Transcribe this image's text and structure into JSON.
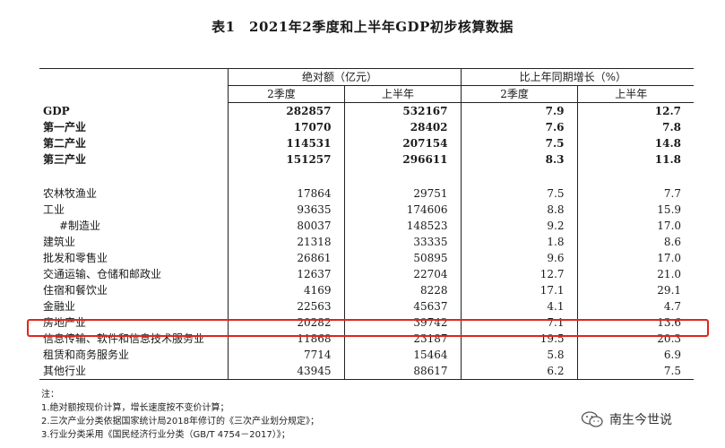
{
  "title": "表1　2021年2季度和上半年GDP初步核算数据",
  "header": {
    "group_abs": "绝对额（亿元）",
    "group_growth": "比上年同期增长（%）",
    "col_q2": "2季度",
    "col_h1": "上半年",
    "col_q2_growth": "2季度",
    "col_h1_growth": "上半年"
  },
  "rows": [
    {
      "label": "GDP",
      "q2": "282857",
      "h1": "532167",
      "gq2": "7.9",
      "gh1": "12.7"
    },
    {
      "label": "第一产业",
      "q2": "17070",
      "h1": "28402",
      "gq2": "7.6",
      "gh1": "7.8"
    },
    {
      "label": "第二产业",
      "q2": "114531",
      "h1": "207154",
      "gq2": "7.5",
      "gh1": "14.8"
    },
    {
      "label": "第三产业",
      "q2": "151257",
      "h1": "296611",
      "gq2": "8.3",
      "gh1": "11.8"
    },
    {
      "label": "农林牧渔业",
      "q2": "17864",
      "h1": "29751",
      "gq2": "7.5",
      "gh1": "7.7"
    },
    {
      "label": "工业",
      "q2": "93635",
      "h1": "174606",
      "gq2": "8.8",
      "gh1": "15.9"
    },
    {
      "label": "#制造业",
      "q2": "80037",
      "h1": "148523",
      "gq2": "9.2",
      "gh1": "17.0"
    },
    {
      "label": "建筑业",
      "q2": "21318",
      "h1": "33335",
      "gq2": "1.8",
      "gh1": "8.6"
    },
    {
      "label": "批发和零售业",
      "q2": "26861",
      "h1": "50895",
      "gq2": "9.6",
      "gh1": "17.0"
    },
    {
      "label": "交通运输、仓储和邮政业",
      "q2": "12637",
      "h1": "22704",
      "gq2": "12.7",
      "gh1": "21.0"
    },
    {
      "label": "住宿和餐饮业",
      "q2": "4169",
      "h1": "8228",
      "gq2": "17.1",
      "gh1": "29.1"
    },
    {
      "label": "金融业",
      "q2": "22563",
      "h1": "45637",
      "gq2": "4.1",
      "gh1": "4.7"
    },
    {
      "label": "房地产业",
      "q2": "20282",
      "h1": "39742",
      "gq2": "7.1",
      "gh1": "13.6"
    },
    {
      "label": "信息传输、软件和信息技术服务业",
      "q2": "11868",
      "h1": "23187",
      "gq2": "19.5",
      "gh1": "20.3"
    },
    {
      "label": "租赁和商务服务业",
      "q2": "7714",
      "h1": "15464",
      "gq2": "5.8",
      "gh1": "6.9"
    },
    {
      "label": "其他行业",
      "q2": "43945",
      "h1": "88617",
      "gq2": "6.2",
      "gh1": "7.5"
    }
  ],
  "notes": {
    "heading": "注：",
    "n1": "1.绝对额按现价计算，增长速度按不变价计算；",
    "n2": "2.三次产业分类依据国家统计局2018年修订的《三次产业划分规定》；",
    "n3": "3.行业分类采用《国民经济行业分类（GB/T 4754－2017）》；"
  },
  "watermark": {
    "text": "南生今世说",
    "icon": "wechat-icon"
  },
  "highlight_color": "#e0251b"
}
